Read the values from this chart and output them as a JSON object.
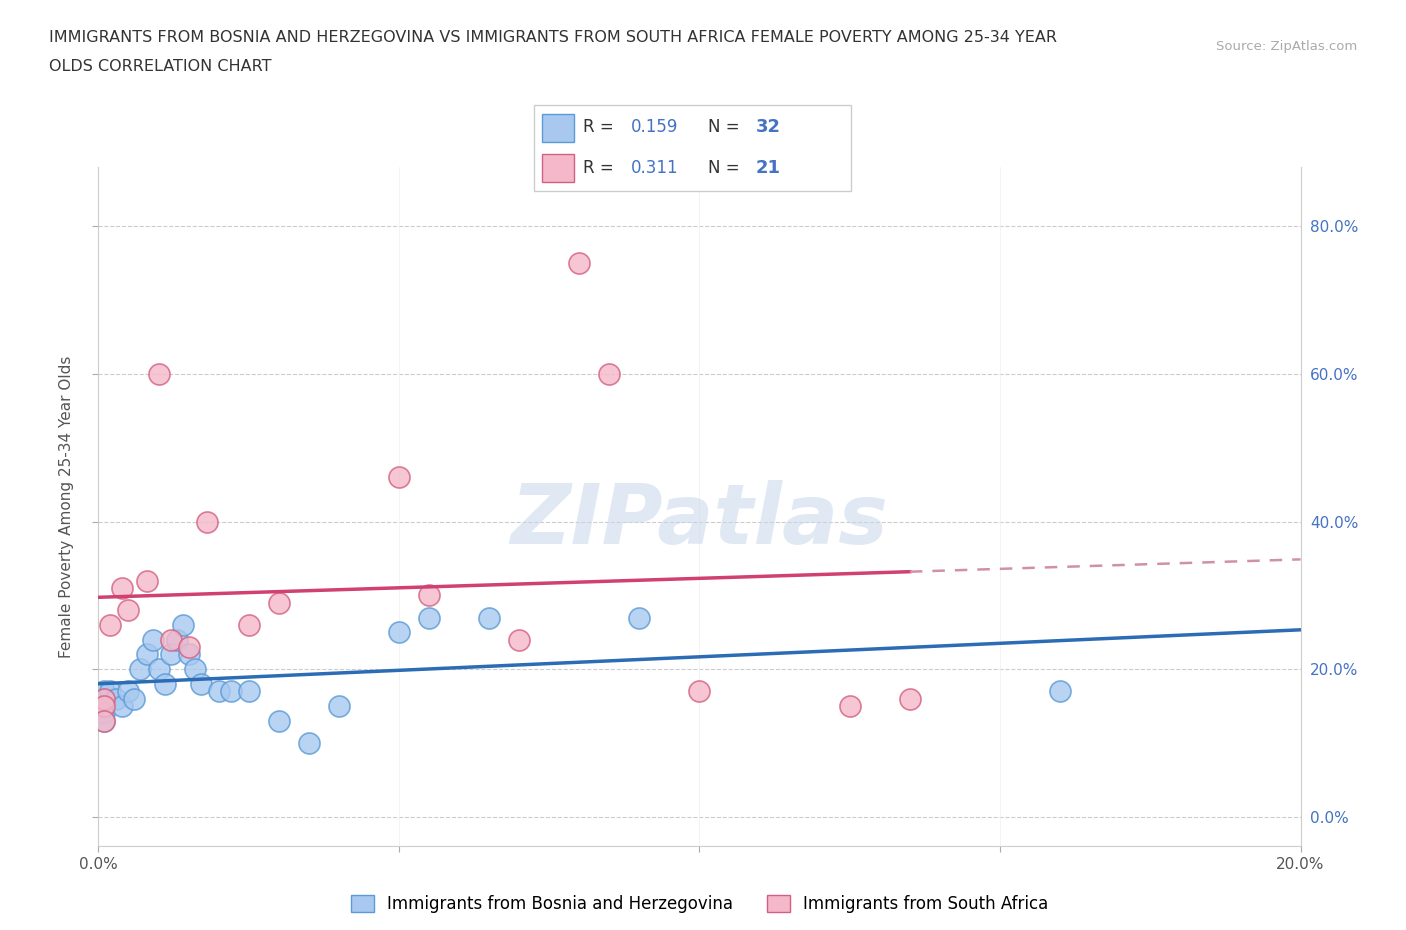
{
  "title_line1": "IMMIGRANTS FROM BOSNIA AND HERZEGOVINA VS IMMIGRANTS FROM SOUTH AFRICA FEMALE POVERTY AMONG 25-34 YEAR",
  "title_line2": "OLDS CORRELATION CHART",
  "source": "Source: ZipAtlas.com",
  "ylabel": "Female Poverty Among 25-34 Year Olds",
  "xlim": [
    0.0,
    0.2
  ],
  "ylim": [
    -0.04,
    0.88
  ],
  "yticks": [
    0.0,
    0.2,
    0.4,
    0.6,
    0.8
  ],
  "xticks": [
    0.0,
    0.05,
    0.1,
    0.15,
    0.2
  ],
  "bosnia_color": "#a8c8f0",
  "bosnia_edge_color": "#5b9bd5",
  "southafrica_color": "#f4b8ca",
  "southafrica_edge_color": "#d46080",
  "bosnia_line_color": "#2b6cb5",
  "southafrica_line_color": "#d04070",
  "southafrica_dash_color": "#d090a8",
  "R_bosnia": 0.159,
  "N_bosnia": 32,
  "R_southafrica": 0.311,
  "N_southafrica": 21,
  "watermark": "ZIPatlas",
  "legend_label_bosnia": "Immigrants from Bosnia and Herzegovina",
  "legend_label_southafrica": "Immigrants from South Africa",
  "bosnia_x": [
    0.001,
    0.001,
    0.001,
    0.001,
    0.001,
    0.002,
    0.003,
    0.004,
    0.005,
    0.006,
    0.007,
    0.008,
    0.009,
    0.01,
    0.011,
    0.012,
    0.013,
    0.014,
    0.015,
    0.016,
    0.017,
    0.02,
    0.022,
    0.025,
    0.03,
    0.035,
    0.04,
    0.05,
    0.055,
    0.065,
    0.09,
    0.16
  ],
  "bosnia_y": [
    0.17,
    0.16,
    0.15,
    0.14,
    0.13,
    0.17,
    0.16,
    0.15,
    0.17,
    0.16,
    0.2,
    0.22,
    0.24,
    0.2,
    0.18,
    0.22,
    0.24,
    0.26,
    0.22,
    0.2,
    0.18,
    0.17,
    0.17,
    0.17,
    0.13,
    0.1,
    0.15,
    0.25,
    0.27,
    0.27,
    0.27,
    0.17
  ],
  "southafrica_x": [
    0.001,
    0.001,
    0.001,
    0.002,
    0.004,
    0.005,
    0.008,
    0.01,
    0.012,
    0.015,
    0.018,
    0.025,
    0.03,
    0.05,
    0.055,
    0.07,
    0.08,
    0.085,
    0.1,
    0.125,
    0.135
  ],
  "southafrica_y": [
    0.16,
    0.15,
    0.13,
    0.26,
    0.31,
    0.28,
    0.32,
    0.6,
    0.24,
    0.23,
    0.4,
    0.26,
    0.29,
    0.46,
    0.3,
    0.24,
    0.75,
    0.6,
    0.17,
    0.15,
    0.16
  ]
}
